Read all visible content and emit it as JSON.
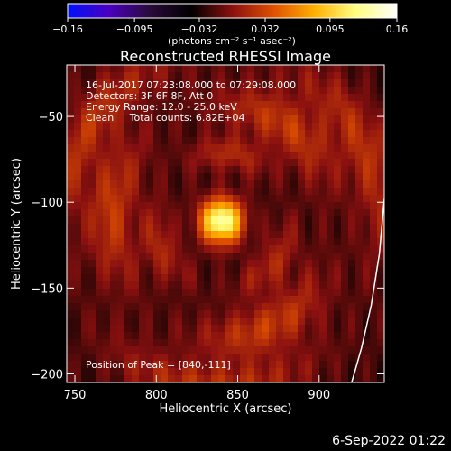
{
  "footer_date": "6-Sep-2022 01:22",
  "chart_data": {
    "type": "heatmap",
    "title": "Reconstructed RHESSI Image",
    "xlabel": "Heliocentric X (arcsec)",
    "ylabel": "Heliocentric Y (arcsec)",
    "xlim": [
      745,
      940
    ],
    "ylim": [
      -205,
      -20
    ],
    "x_ticks": [
      750,
      800,
      850,
      900
    ],
    "x_tick_labels": [
      "750",
      "800",
      "850",
      "900"
    ],
    "y_ticks": [
      -50,
      -100,
      -150,
      -200
    ],
    "y_tick_labels": [
      "−50",
      "−100",
      "−150",
      "−200"
    ],
    "grid": false,
    "colorbar": {
      "min": -0.16,
      "max": 0.16,
      "tick_values": [
        -0.16,
        -0.095,
        -0.032,
        0.032,
        0.095,
        0.16
      ],
      "tick_labels": [
        "−0.16",
        "−0.095",
        "−0.032",
        "0.032",
        "0.095",
        "0.16"
      ],
      "unit_label": "(photons cm⁻² s⁻¹ asec⁻²)",
      "colors": [
        "#0010ff",
        "#4a00c0",
        "#2a0a3a",
        "#000000",
        "#8a1010",
        "#e05000",
        "#ffb000",
        "#ffff80",
        "#ffffff"
      ]
    },
    "info_lines": [
      "16-Jul-2017 07:23:08.000 to 07:29:08.000",
      "Detectors: 3F 6F 8F, Att 0",
      "Energy Range: 12.0 - 25.0 keV",
      "Clean     Total counts: 6.82E+04"
    ],
    "peak_label": "Position of Peak = [840,-111]",
    "peak": {
      "x": 840,
      "y": -111,
      "value": 0.16
    },
    "background_value": -0.02,
    "rings": [
      {
        "radius": 40,
        "value": 0.035,
        "width": 7
      },
      {
        "radius": 68,
        "value": 0.045,
        "width": 10
      },
      {
        "radius": 98,
        "value": 0.04,
        "width": 10
      }
    ],
    "limb_curve": [
      {
        "x": 940,
        "y": -98
      },
      {
        "x": 937,
        "y": -130
      },
      {
        "x": 932,
        "y": -160
      },
      {
        "x": 926,
        "y": -185
      },
      {
        "x": 920,
        "y": -205
      }
    ]
  }
}
